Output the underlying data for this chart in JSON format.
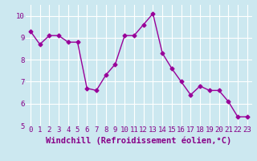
{
  "x": [
    0,
    1,
    2,
    3,
    4,
    5,
    6,
    7,
    8,
    9,
    10,
    11,
    12,
    13,
    14,
    15,
    16,
    17,
    18,
    19,
    20,
    21,
    22,
    23
  ],
  "y": [
    9.3,
    8.7,
    9.1,
    9.1,
    8.8,
    8.8,
    6.7,
    6.6,
    7.3,
    7.8,
    9.1,
    9.1,
    9.6,
    10.1,
    8.3,
    7.6,
    7.0,
    6.4,
    6.8,
    6.6,
    6.6,
    6.1,
    5.4,
    5.4
  ],
  "line_color": "#990099",
  "marker": "D",
  "marker_size": 2.5,
  "bg_color": "#cce8f0",
  "grid_color": "#ffffff",
  "xlabel": "Windchill (Refroidissement éolien,°C)",
  "xlabel_color": "#880088",
  "xlim": [
    -0.5,
    23.5
  ],
  "ylim": [
    5,
    10.5
  ],
  "yticks": [
    5,
    6,
    7,
    8,
    9,
    10
  ],
  "xticks": [
    0,
    1,
    2,
    3,
    4,
    5,
    6,
    7,
    8,
    9,
    10,
    11,
    12,
    13,
    14,
    15,
    16,
    17,
    18,
    19,
    20,
    21,
    22,
    23
  ],
  "tick_label_fontsize": 6.5,
  "xlabel_fontsize": 7.5,
  "line_width": 1.0
}
